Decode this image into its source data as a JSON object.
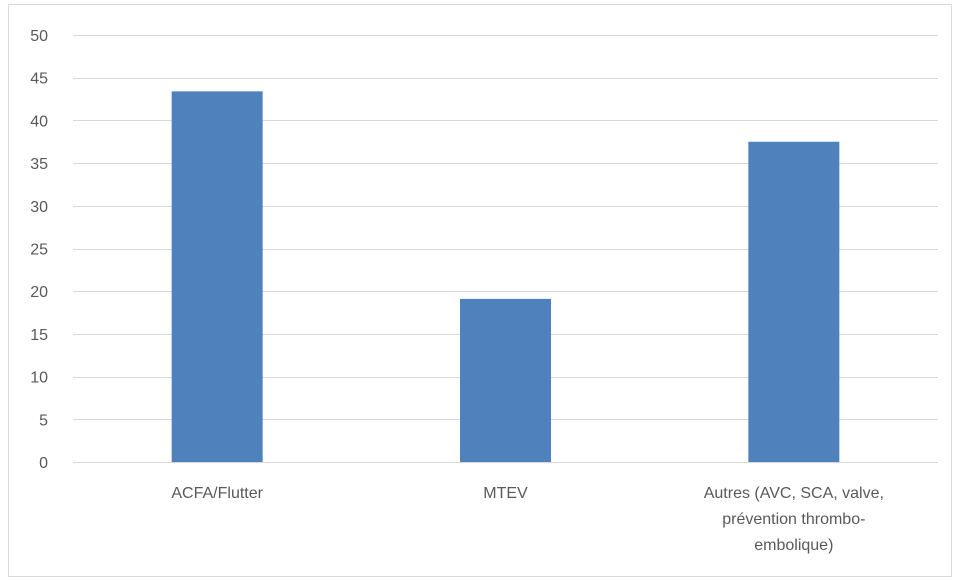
{
  "chart_data": {
    "type": "bar",
    "categories": [
      "ACFA/Flutter",
      "MTEV",
      "Autres (AVC, SCA, valve, prévention thrombo-embolique)"
    ],
    "category_label_lines": [
      [
        "ACFA/Flutter"
      ],
      [
        "MTEV"
      ],
      [
        "Autres (AVC, SCA, valve,",
        "prévention thrombo-",
        "embolique)"
      ]
    ],
    "values": [
      43.4,
      19.1,
      37.5
    ],
    "ylim": [
      0,
      50
    ],
    "yticks": [
      0,
      5,
      10,
      15,
      20,
      25,
      30,
      35,
      40,
      45,
      50
    ],
    "grid": true,
    "legend": "none",
    "bar_color": "#4f81bd"
  }
}
